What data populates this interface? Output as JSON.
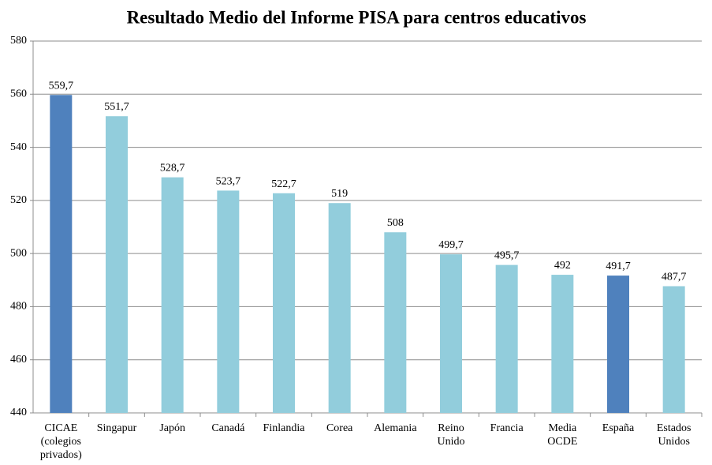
{
  "chart_data": {
    "type": "bar",
    "title": "Resultado Medio del Informe PISA para centros educativos",
    "categories": [
      "CICAE (colegios privados)",
      "Singapur",
      "Japón",
      "Canadá",
      "Finlandia",
      "Corea",
      "Alemania",
      "Reino Unido",
      "Francia",
      "Media OCDE",
      "España",
      "Estados Unidos"
    ],
    "values": [
      559.7,
      551.7,
      528.7,
      523.7,
      522.7,
      519,
      508,
      499.7,
      495.7,
      492,
      491.7,
      487.7
    ],
    "value_labels": [
      "559,7",
      "551,7",
      "528,7",
      "523,7",
      "522,7",
      "519",
      "508",
      "499,7",
      "495,7",
      "492",
      "491,7",
      "487,7"
    ],
    "colors": [
      "#4f81bd",
      "#92cddc",
      "#92cddc",
      "#92cddc",
      "#92cddc",
      "#92cddc",
      "#92cddc",
      "#92cddc",
      "#92cddc",
      "#92cddc",
      "#4f81bd",
      "#92cddc"
    ],
    "ylim": [
      440,
      580
    ],
    "yticks": [
      440,
      460,
      480,
      500,
      520,
      540,
      560,
      580
    ],
    "grid": true
  }
}
